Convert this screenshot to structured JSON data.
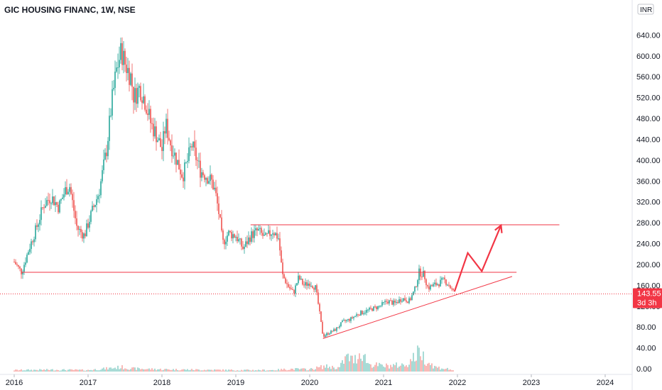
{
  "chart_data": {
    "type": "candlestick",
    "title": "GIC HOUSING FINANC, 1W, NSE",
    "currency": "INR",
    "interval": "1W",
    "exchange": "NSE",
    "x_ticks": [
      "2016",
      "2017",
      "2018",
      "2019",
      "2020",
      "2021",
      "2022",
      "2023",
      "2024"
    ],
    "y_ticks": [
      "0.00",
      "40.00",
      "80.00",
      "120.00",
      "160.00",
      "200.00",
      "240.00",
      "280.00",
      "320.00",
      "360.00",
      "400.00",
      "440.00",
      "480.00",
      "520.00",
      "560.00",
      "600.00",
      "640.00"
    ],
    "ylim": [
      0,
      680
    ],
    "xlim": [
      2016.0,
      2024.45
    ],
    "last_price": "143.55",
    "last_price_countdown": "3d 3h",
    "colors": {
      "up": "#26a69a",
      "down": "#ef5350",
      "drawing": "#f23645"
    },
    "price_path": [
      [
        2016.0,
        205
      ],
      [
        2016.1,
        185
      ],
      [
        2016.2,
        230
      ],
      [
        2016.3,
        270
      ],
      [
        2016.4,
        315
      ],
      [
        2016.5,
        330
      ],
      [
        2016.6,
        310
      ],
      [
        2016.7,
        345
      ],
      [
        2016.75,
        350
      ],
      [
        2016.85,
        270
      ],
      [
        2016.95,
        255
      ],
      [
        2017.05,
        300
      ],
      [
        2017.15,
        340
      ],
      [
        2017.25,
        420
      ],
      [
        2017.32,
        510
      ],
      [
        2017.38,
        570
      ],
      [
        2017.45,
        610
      ],
      [
        2017.5,
        585
      ],
      [
        2017.58,
        560
      ],
      [
        2017.62,
        520
      ],
      [
        2017.7,
        540
      ],
      [
        2017.78,
        510
      ],
      [
        2017.85,
        470
      ],
      [
        2017.92,
        450
      ],
      [
        2018.0,
        420
      ],
      [
        2018.05,
        470
      ],
      [
        2018.12,
        430
      ],
      [
        2018.2,
        400
      ],
      [
        2018.28,
        370
      ],
      [
        2018.35,
        400
      ],
      [
        2018.4,
        430
      ],
      [
        2018.45,
        410
      ],
      [
        2018.52,
        380
      ],
      [
        2018.6,
        370
      ],
      [
        2018.67,
        360
      ],
      [
        2018.72,
        340
      ],
      [
        2018.78,
        290
      ],
      [
        2018.82,
        240
      ],
      [
        2018.9,
        260
      ],
      [
        2019.0,
        255
      ],
      [
        2019.1,
        230
      ],
      [
        2019.2,
        255
      ],
      [
        2019.3,
        265
      ],
      [
        2019.4,
        250
      ],
      [
        2019.5,
        265
      ],
      [
        2019.58,
        250
      ],
      [
        2019.63,
        180
      ],
      [
        2019.7,
        160
      ],
      [
        2019.78,
        145
      ],
      [
        2019.85,
        175
      ],
      [
        2019.92,
        160
      ],
      [
        2020.0,
        165
      ],
      [
        2020.08,
        155
      ],
      [
        2020.12,
        120
      ],
      [
        2020.18,
        62
      ],
      [
        2020.25,
        68
      ],
      [
        2020.35,
        75
      ],
      [
        2020.45,
        90
      ],
      [
        2020.55,
        95
      ],
      [
        2020.65,
        105
      ],
      [
        2020.75,
        110
      ],
      [
        2020.85,
        115
      ],
      [
        2020.95,
        120
      ],
      [
        2021.05,
        130
      ],
      [
        2021.15,
        125
      ],
      [
        2021.25,
        135
      ],
      [
        2021.35,
        130
      ],
      [
        2021.42,
        150
      ],
      [
        2021.48,
        185
      ],
      [
        2021.55,
        180
      ],
      [
        2021.6,
        155
      ],
      [
        2021.68,
        160
      ],
      [
        2021.76,
        165
      ],
      [
        2021.82,
        170
      ],
      [
        2021.88,
        162
      ],
      [
        2021.93,
        150
      ],
      [
        2021.96,
        143.55
      ]
    ],
    "volume_path": [
      [
        2016.0,
        4
      ],
      [
        2016.5,
        5
      ],
      [
        2017.0,
        4
      ],
      [
        2017.3,
        9
      ],
      [
        2017.45,
        12
      ],
      [
        2017.6,
        8
      ],
      [
        2018.0,
        6
      ],
      [
        2018.5,
        5
      ],
      [
        2019.0,
        4
      ],
      [
        2019.5,
        4
      ],
      [
        2019.75,
        7
      ],
      [
        2020.0,
        6
      ],
      [
        2020.2,
        14
      ],
      [
        2020.4,
        10
      ],
      [
        2020.5,
        40
      ],
      [
        2020.6,
        30
      ],
      [
        2020.7,
        55
      ],
      [
        2020.8,
        20
      ],
      [
        2021.0,
        15
      ],
      [
        2021.3,
        18
      ],
      [
        2021.45,
        45
      ],
      [
        2021.5,
        60
      ],
      [
        2021.55,
        35
      ],
      [
        2021.7,
        12
      ],
      [
        2021.9,
        6
      ],
      [
        2021.96,
        3
      ]
    ],
    "volume_max": 100,
    "annotations": [
      {
        "type": "horizontal_line",
        "from_x": 2016.1,
        "to_x": 2022.8,
        "y": 185
      },
      {
        "type": "horizontal_line",
        "from_x": 2019.2,
        "to_x": 2023.38,
        "y": 276
      },
      {
        "type": "trend_line",
        "points": [
          [
            2020.18,
            58
          ],
          [
            2022.74,
            177
          ]
        ]
      },
      {
        "type": "projection_path",
        "points": [
          [
            2021.96,
            148
          ],
          [
            2022.14,
            222
          ],
          [
            2022.33,
            187
          ],
          [
            2022.59,
            275
          ]
        ]
      },
      {
        "type": "dotted_price_line",
        "y": 143.55
      }
    ]
  }
}
